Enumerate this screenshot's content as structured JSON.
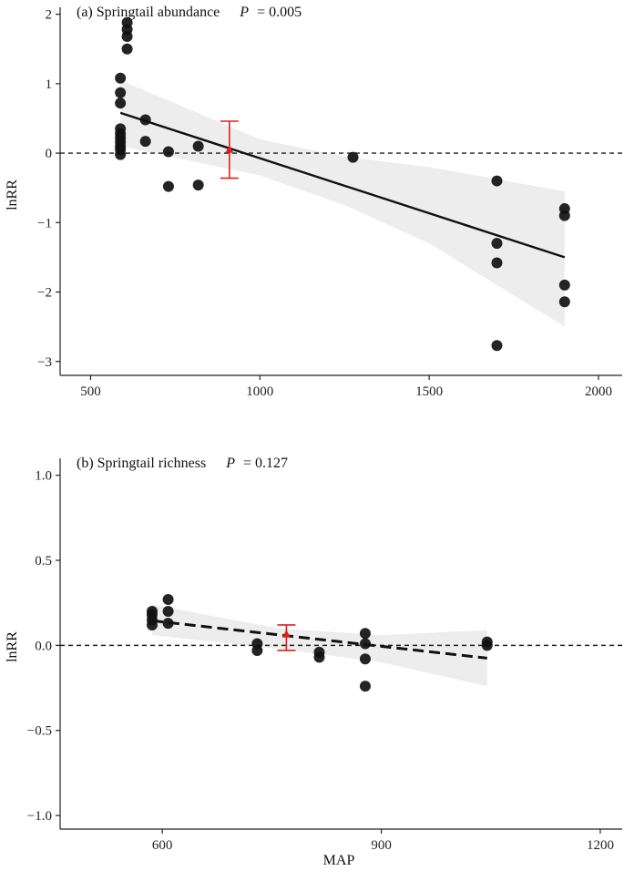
{
  "chart_data": [
    {
      "type": "scatter",
      "panel_label": "(a) Springtail abundance",
      "p_label": "P",
      "p_value": "= 0.005",
      "xlabel": "",
      "ylabel": "lnRR",
      "xlim": [
        410,
        2070
      ],
      "ylim": [
        -3.2,
        2.1
      ],
      "xticks": [
        500,
        1000,
        1500,
        2000
      ],
      "xtick_labels": [
        "500",
        "1000",
        "1500",
        "2000"
      ],
      "yticks": [
        -3,
        -2,
        -1,
        0,
        1,
        2
      ],
      "ytick_labels": [
        "−3",
        "−2",
        "−1",
        "0",
        "1",
        "2"
      ],
      "grid": false,
      "reference_line_y": 0,
      "points": [
        {
          "x": 608,
          "y": 1.88
        },
        {
          "x": 608,
          "y": 1.78
        },
        {
          "x": 608,
          "y": 1.68
        },
        {
          "x": 608,
          "y": 1.5
        },
        {
          "x": 588,
          "y": 1.08
        },
        {
          "x": 588,
          "y": 0.87
        },
        {
          "x": 588,
          "y": 0.72
        },
        {
          "x": 588,
          "y": 0.35
        },
        {
          "x": 588,
          "y": 0.28
        },
        {
          "x": 588,
          "y": 0.22
        },
        {
          "x": 588,
          "y": 0.16
        },
        {
          "x": 588,
          "y": 0.1
        },
        {
          "x": 588,
          "y": 0.05
        },
        {
          "x": 588,
          "y": -0.02
        },
        {
          "x": 662,
          "y": 0.48
        },
        {
          "x": 662,
          "y": 0.17
        },
        {
          "x": 730,
          "y": 0.02
        },
        {
          "x": 730,
          "y": -0.48
        },
        {
          "x": 818,
          "y": 0.1
        },
        {
          "x": 818,
          "y": -0.46
        },
        {
          "x": 1275,
          "y": -0.06
        },
        {
          "x": 1700,
          "y": -0.4
        },
        {
          "x": 1700,
          "y": -1.3
        },
        {
          "x": 1700,
          "y": -1.58
        },
        {
          "x": 1700,
          "y": -2.77
        },
        {
          "x": 1900,
          "y": -0.8
        },
        {
          "x": 1900,
          "y": -0.9
        },
        {
          "x": 1900,
          "y": -1.9
        },
        {
          "x": 1900,
          "y": -2.14
        }
      ],
      "fit_line": {
        "x": [
          588,
          1900
        ],
        "y": [
          0.58,
          -1.5
        ],
        "style": "solid"
      },
      "confidence_band": {
        "x": [
          588,
          1000,
          1250,
          1500,
          1900
        ],
        "upper": [
          1.05,
          0.2,
          -0.05,
          -0.2,
          -0.55
        ],
        "lower": [
          0.1,
          -0.32,
          -0.75,
          -1.3,
          -2.5
        ]
      },
      "mean_estimate": {
        "x": 910,
        "y": 0.05,
        "ci": [
          -0.36,
          0.46
        ],
        "color": "#e0201c"
      }
    },
    {
      "type": "scatter",
      "panel_label": "(b) Springtail richness",
      "p_label": "P",
      "p_value": "= 0.127",
      "xlabel": "MAP",
      "ylabel": "lnRR",
      "xlim": [
        460,
        1230
      ],
      "ylim": [
        -1.08,
        1.1
      ],
      "xticks": [
        600,
        900,
        1200
      ],
      "xtick_labels": [
        "600",
        "900",
        "1200"
      ],
      "yticks": [
        -1.0,
        -0.5,
        0.0,
        0.5,
        1.0
      ],
      "ytick_labels": [
        "−1.0",
        "−0.5",
        "0.0",
        "0.5",
        "1.0"
      ],
      "grid": false,
      "reference_line_y": 0,
      "points": [
        {
          "x": 586,
          "y": 0.2
        },
        {
          "x": 586,
          "y": 0.18
        },
        {
          "x": 586,
          "y": 0.15
        },
        {
          "x": 586,
          "y": 0.12
        },
        {
          "x": 608,
          "y": 0.27
        },
        {
          "x": 608,
          "y": 0.2
        },
        {
          "x": 608,
          "y": 0.13
        },
        {
          "x": 730,
          "y": 0.01
        },
        {
          "x": 730,
          "y": -0.03
        },
        {
          "x": 815,
          "y": -0.04
        },
        {
          "x": 815,
          "y": -0.07
        },
        {
          "x": 878,
          "y": 0.07
        },
        {
          "x": 878,
          "y": 0.01
        },
        {
          "x": 878,
          "y": -0.08
        },
        {
          "x": 878,
          "y": -0.24
        },
        {
          "x": 1045,
          "y": 0.02
        },
        {
          "x": 1045,
          "y": 0.0
        }
      ],
      "fit_line": {
        "x": [
          586,
          1045
        ],
        "y": [
          0.145,
          -0.075
        ],
        "style": "dashed"
      },
      "confidence_band": {
        "x": [
          586,
          760,
          900,
          1045
        ],
        "upper": [
          0.24,
          0.1,
          0.06,
          0.09
        ],
        "lower": [
          0.06,
          -0.02,
          -0.1,
          -0.24
        ]
      },
      "mean_estimate": {
        "x": 770,
        "y": 0.065,
        "ci": [
          -0.03,
          0.12
        ],
        "color": "#e0201c"
      }
    }
  ]
}
